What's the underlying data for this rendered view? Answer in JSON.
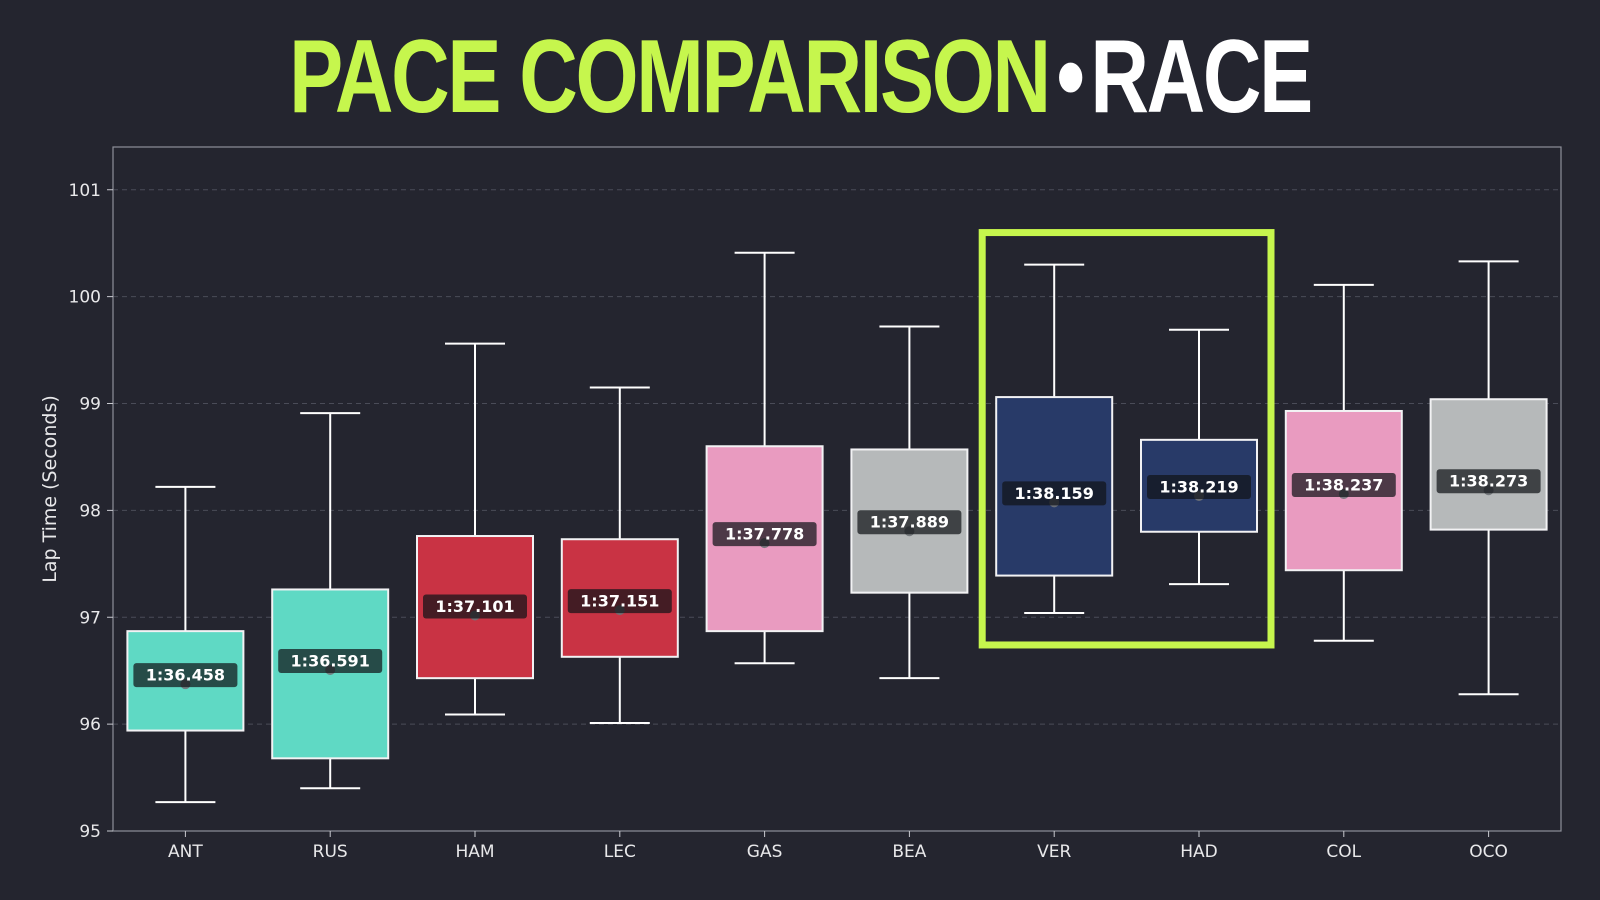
{
  "title": {
    "main": "PACE COMPARISON",
    "separator": "•",
    "sub": "RACE"
  },
  "colors": {
    "background": "#24252f",
    "accent": "#c6f64d",
    "whisker": "#ffffff",
    "grid": "#4a4c58",
    "label_bg": "#111318"
  },
  "chart_data": {
    "type": "box",
    "title": "PACE COMPARISON • RACE",
    "xlabel": "",
    "ylabel": "Lap Time (Seconds)",
    "ylim": [
      95,
      101.4
    ],
    "yticks": [
      95,
      96,
      97,
      98,
      99,
      100,
      101
    ],
    "grid": true,
    "highlight": {
      "categories": [
        "VER",
        "HAD"
      ],
      "color": "#c6f64d"
    },
    "categories": [
      "ANT",
      "RUS",
      "HAM",
      "LEC",
      "GAS",
      "BEA",
      "VER",
      "HAD",
      "COL",
      "OCO"
    ],
    "series": [
      {
        "driver": "ANT",
        "color": "#5fd9c4",
        "whisker_low": 95.27,
        "q1": 95.94,
        "median": 96.458,
        "q3": 96.87,
        "whisker_high": 98.22,
        "median_label": "1:36.458"
      },
      {
        "driver": "RUS",
        "color": "#5fd9c4",
        "whisker_low": 95.4,
        "q1": 95.68,
        "median": 96.591,
        "q3": 97.26,
        "whisker_high": 98.91,
        "median_label": "1:36.591"
      },
      {
        "driver": "HAM",
        "color": "#c93344",
        "whisker_low": 96.09,
        "q1": 96.43,
        "median": 97.101,
        "q3": 97.76,
        "whisker_high": 99.56,
        "median_label": "1:37.101"
      },
      {
        "driver": "LEC",
        "color": "#c93344",
        "whisker_low": 96.01,
        "q1": 96.63,
        "median": 97.151,
        "q3": 97.73,
        "whisker_high": 99.15,
        "median_label": "1:37.151"
      },
      {
        "driver": "GAS",
        "color": "#e99bc0",
        "whisker_low": 96.57,
        "q1": 96.87,
        "median": 97.778,
        "q3": 98.6,
        "whisker_high": 100.41,
        "median_label": "1:37.778"
      },
      {
        "driver": "BEA",
        "color": "#b6b9ba",
        "whisker_low": 96.43,
        "q1": 97.23,
        "median": 97.889,
        "q3": 98.57,
        "whisker_high": 99.72,
        "median_label": "1:37.889"
      },
      {
        "driver": "VER",
        "color": "#283a68",
        "whisker_low": 97.04,
        "q1": 97.39,
        "median": 98.159,
        "q3": 99.06,
        "whisker_high": 100.3,
        "median_label": "1:38.159"
      },
      {
        "driver": "HAD",
        "color": "#283a68",
        "whisker_low": 97.31,
        "q1": 97.8,
        "median": 98.219,
        "q3": 98.66,
        "whisker_high": 99.69,
        "median_label": "1:38.219"
      },
      {
        "driver": "COL",
        "color": "#e99bc0",
        "whisker_low": 96.78,
        "q1": 97.44,
        "median": 98.237,
        "q3": 98.93,
        "whisker_high": 100.11,
        "median_label": "1:38.237"
      },
      {
        "driver": "OCO",
        "color": "#b6b9ba",
        "whisker_low": 96.28,
        "q1": 97.82,
        "median": 98.273,
        "q3": 99.04,
        "whisker_high": 100.33,
        "median_label": "1:38.273"
      }
    ]
  }
}
